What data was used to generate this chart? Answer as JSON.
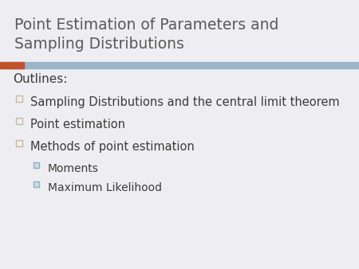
{
  "title_line1": "Point Estimation of Parameters and",
  "title_line2": "Sampling Distributions",
  "title_color": "#595959",
  "title_fontsize": 13.5,
  "background_color": "#eeeef2",
  "header_bar_color": "#9ab4c8",
  "accent_bar_color": "#c0522a",
  "outlines_label": "Outlines:",
  "outlines_fontsize": 11,
  "body_fontsize": 10.5,
  "sub_fontsize": 10,
  "bullet_color": "#3a3a3a",
  "bullets": [
    "Sampling Distributions and the central limit theorem",
    "Point estimation",
    "Methods of point estimation"
  ],
  "sub_bullets": [
    "Moments",
    "Maximum Likelihood"
  ],
  "main_bullet_sq_edge": "#c8b89a",
  "sub_bullet_sq_edge": "#8eafc2",
  "sub_bullet_sq_face": "#c8dce8"
}
